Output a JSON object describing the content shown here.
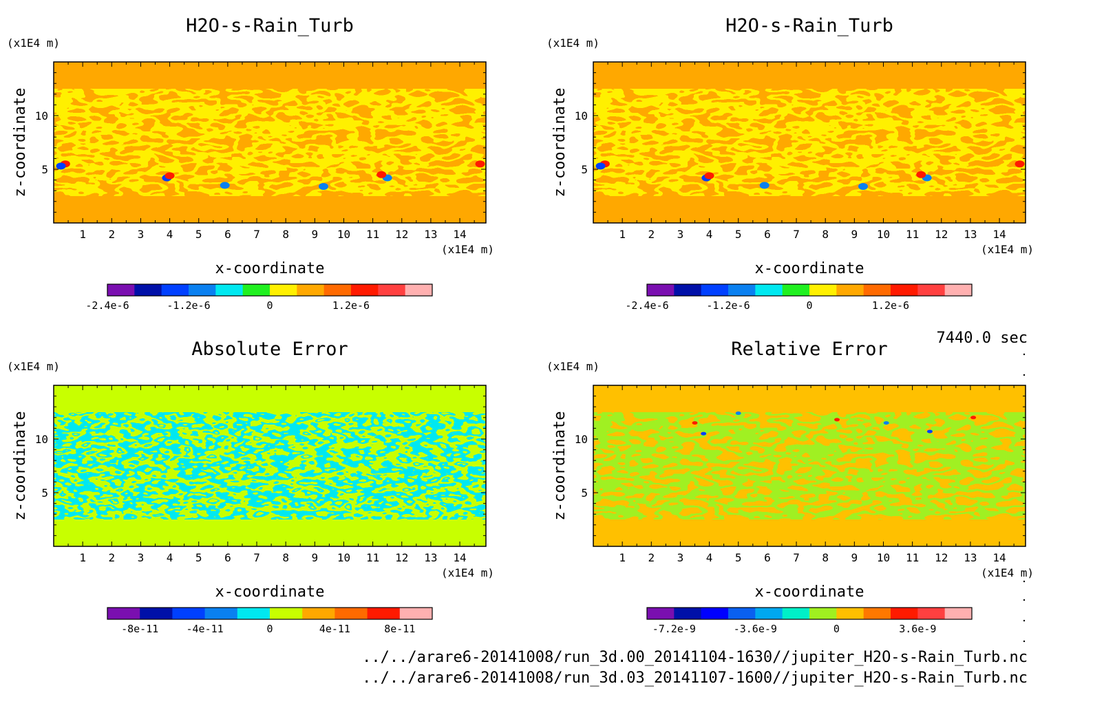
{
  "figure": {
    "time_label": "7440.0 sec",
    "file_paths": [
      "../../arare6-20141008/run_3d.00_20141104-1630//jupiter_H2O-s-Rain_Turb.nc",
      "../../arare6-20141008/run_3d.03_20141107-1600//jupiter_H2O-s-Rain_Turb.nc"
    ],
    "colors": {
      "purple": "#7a0fb0",
      "navy": "#0010a8",
      "blue": "#0040ff",
      "mid_blue": "#0a80f0",
      "cyan": "#00e8f0",
      "teal": "#00f0c8",
      "green": "#20f020",
      "yellow_green": "#c8ff00",
      "yellow": "#fff000",
      "amber": "#ffc000",
      "orange": "#ffa800",
      "dark_orange": "#ff6a00",
      "red": "#ff1a00",
      "light_red": "#ff4040",
      "pink": "#ffb0b0",
      "green_lime": "#a0f020"
    }
  },
  "chart_data": [
    {
      "type": "heatmap",
      "title": "H2O-s-Rain_Turb",
      "xlabel": "x-coordinate",
      "ylabel": "z-coordinate",
      "x_unit": "(x1E4 m)",
      "y_unit": "(x1E4 m)",
      "xlim": [
        0,
        14.9
      ],
      "ylim": [
        0,
        15
      ],
      "x_ticks": [
        "1",
        "2",
        "3",
        "4",
        "5",
        "6",
        "7",
        "8",
        "9",
        "10",
        "11",
        "12",
        "13",
        "14"
      ],
      "y_ticks": [
        "5",
        "10"
      ],
      "background_color": "#ffa800",
      "pattern_color": "#fff000",
      "colorbar": {
        "colors": [
          "#7a0fb0",
          "#0010a8",
          "#0040ff",
          "#0a80f0",
          "#00e8f0",
          "#20f020",
          "#fff000",
          "#ffa800",
          "#ff6a00",
          "#ff1a00",
          "#ff4040",
          "#ffb0b0"
        ],
        "tick_labels": [
          "-2.4e-6",
          "-1.2e-6",
          "0",
          "1.2e-6"
        ],
        "tick_values": [
          -2.4e-06,
          -1.2e-06,
          0,
          1.2e-06
        ]
      }
    },
    {
      "type": "heatmap",
      "title": "H2O-s-Rain_Turb",
      "xlabel": "x-coordinate",
      "ylabel": "z-coordinate",
      "x_unit": "(x1E4 m)",
      "y_unit": "(x1E4 m)",
      "xlim": [
        0,
        14.9
      ],
      "ylim": [
        0,
        15
      ],
      "x_ticks": [
        "1",
        "2",
        "3",
        "4",
        "5",
        "6",
        "7",
        "8",
        "9",
        "10",
        "11",
        "12",
        "13",
        "14"
      ],
      "y_ticks": [
        "5",
        "10"
      ],
      "background_color": "#ffa800",
      "pattern_color": "#fff000",
      "colorbar": {
        "colors": [
          "#7a0fb0",
          "#0010a8",
          "#0040ff",
          "#0a80f0",
          "#00e8f0",
          "#20f020",
          "#fff000",
          "#ffa800",
          "#ff6a00",
          "#ff1a00",
          "#ff4040",
          "#ffb0b0"
        ],
        "tick_labels": [
          "-2.4e-6",
          "-1.2e-6",
          "0",
          "1.2e-6"
        ],
        "tick_values": [
          -2.4e-06,
          -1.2e-06,
          0,
          1.2e-06
        ]
      }
    },
    {
      "type": "heatmap",
      "title": "Absolute Error",
      "xlabel": "x-coordinate",
      "ylabel": "z-coordinate",
      "x_unit": "(x1E4 m)",
      "y_unit": "(x1E4 m)",
      "xlim": [
        0,
        14.9
      ],
      "ylim": [
        0,
        15
      ],
      "x_ticks": [
        "1",
        "2",
        "3",
        "4",
        "5",
        "6",
        "7",
        "8",
        "9",
        "10",
        "11",
        "12",
        "13",
        "14"
      ],
      "y_ticks": [
        "5",
        "10"
      ],
      "background_color": "#c8ff00",
      "pattern_color": "#00e8f0",
      "colorbar": {
        "colors": [
          "#7a0fb0",
          "#0010a8",
          "#0040ff",
          "#0a80f0",
          "#00e8f0",
          "#c8ff00",
          "#ffa800",
          "#ff6a00",
          "#ff1a00",
          "#ffb0b0"
        ],
        "tick_labels": [
          "-8e-11",
          "-4e-11",
          "0",
          "4e-11",
          "8e-11"
        ],
        "tick_values": [
          -8e-11,
          -4e-11,
          0,
          4e-11,
          8e-11
        ]
      }
    },
    {
      "type": "heatmap",
      "title": "Relative Error",
      "xlabel": "x-coordinate",
      "ylabel": "z-coordinate",
      "x_unit": "(x1E4 m)",
      "y_unit": "(x1E4 m)",
      "xlim": [
        0,
        14.9
      ],
      "ylim": [
        0,
        15
      ],
      "x_ticks": [
        "1",
        "2",
        "3",
        "4",
        "5",
        "6",
        "7",
        "8",
        "9",
        "10",
        "11",
        "12",
        "13",
        "14"
      ],
      "y_ticks": [
        "5",
        "10"
      ],
      "background_color": "#ffc000",
      "pattern_color": "#a0f020",
      "colorbar": {
        "colors": [
          "#7a0fb0",
          "#0010a8",
          "#0000ff",
          "#0a60f0",
          "#00a8f0",
          "#00f0c8",
          "#a0f020",
          "#ffc000",
          "#ff7800",
          "#ff1a00",
          "#ff4040",
          "#ffb0b0"
        ],
        "tick_labels": [
          "-7.2e-9",
          "-3.6e-9",
          "0",
          "3.6e-9"
        ],
        "tick_values": [
          -7.2e-09,
          -3.6e-09,
          0,
          3.6e-09
        ]
      }
    }
  ]
}
